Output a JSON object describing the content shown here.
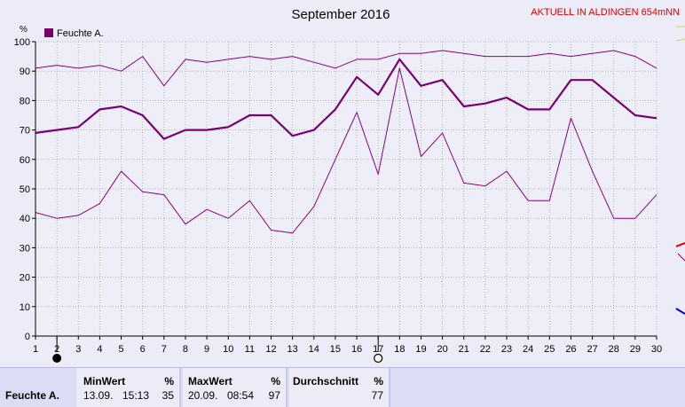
{
  "header": {
    "title": "September 2016",
    "station": "AKTUELL IN ALDINGEN 654mNN"
  },
  "chart_data": {
    "type": "line",
    "title": "September 2016",
    "ylabel": "%",
    "xlim": [
      1,
      30
    ],
    "ylim": [
      0,
      100
    ],
    "yticks": [
      0,
      10,
      20,
      30,
      40,
      50,
      60,
      70,
      80,
      90,
      100
    ],
    "xticks": [
      1,
      2,
      3,
      4,
      5,
      6,
      7,
      8,
      9,
      10,
      11,
      12,
      13,
      14,
      15,
      16,
      17,
      18,
      19,
      20,
      21,
      22,
      23,
      24,
      25,
      26,
      27,
      28,
      29,
      30
    ],
    "grid": true,
    "legend": "top-left",
    "x": [
      1,
      2,
      3,
      4,
      5,
      6,
      7,
      8,
      9,
      10,
      11,
      12,
      13,
      14,
      15,
      16,
      17,
      18,
      19,
      20,
      21,
      22,
      23,
      24,
      25,
      26,
      27,
      28,
      29,
      30
    ],
    "series": [
      {
        "name": "Feuchte A.",
        "role": "mean",
        "color": "#7a0070",
        "values": [
          69,
          70,
          71,
          77,
          78,
          75,
          67,
          70,
          70,
          71,
          75,
          75,
          68,
          70,
          77,
          88,
          82,
          94,
          85,
          87,
          78,
          79,
          81,
          77,
          77,
          87,
          87,
          81,
          75,
          74
        ]
      },
      {
        "role": "max",
        "color": "#8a0080",
        "values": [
          91,
          92,
          91,
          92,
          90,
          95,
          85,
          94,
          93,
          94,
          95,
          94,
          95,
          93,
          91,
          94,
          94,
          96,
          96,
          97,
          96,
          95,
          95,
          95,
          96,
          95,
          96,
          97,
          95,
          91
        ]
      },
      {
        "role": "min",
        "color": "#8a0080",
        "values": [
          42,
          40,
          41,
          45,
          56,
          49,
          48,
          38,
          43,
          40,
          46,
          36,
          35,
          44,
          60,
          76,
          55,
          91,
          61,
          69,
          52,
          51,
          56,
          46,
          46,
          74,
          56,
          40,
          40,
          48
        ]
      }
    ],
    "markers": [
      {
        "x": 2,
        "icon": "new-moon-icon"
      },
      {
        "x": 17,
        "icon": "full-moon-icon"
      }
    ]
  },
  "footer": {
    "row_label": "Feuchte A.",
    "min": {
      "header": "MinWert",
      "unit": "%",
      "date": "13.09.",
      "time": "15:13",
      "value": "35"
    },
    "max": {
      "header": "MaxWert",
      "unit": "%",
      "date": "20.09.",
      "time": "08:54",
      "value": "97"
    },
    "avg": {
      "header": "Durchschnitt",
      "unit": "%",
      "value": "77"
    }
  }
}
